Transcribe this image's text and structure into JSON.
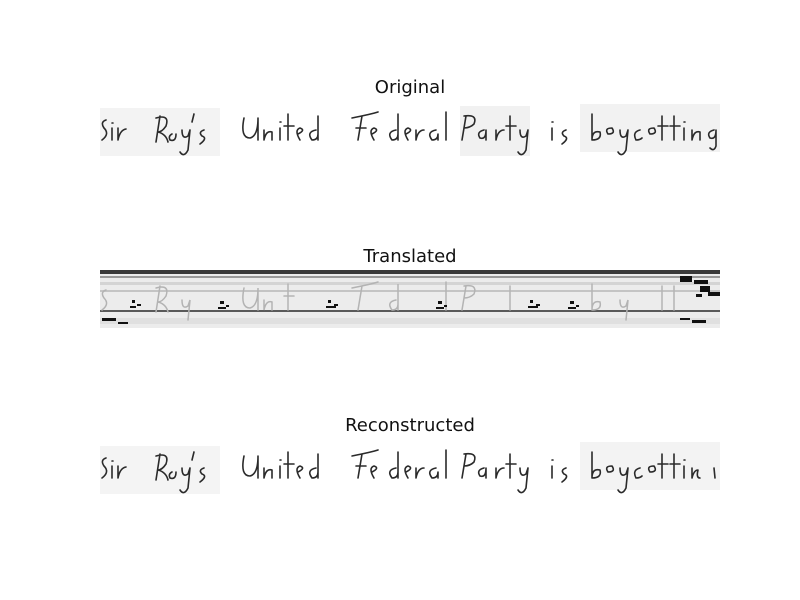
{
  "panels": [
    {
      "title": "Original"
    },
    {
      "title": "Translated"
    },
    {
      "title": "Reconstructed"
    }
  ],
  "handwriting_text": "Sir Roy's United Federal Party is boycotting"
}
